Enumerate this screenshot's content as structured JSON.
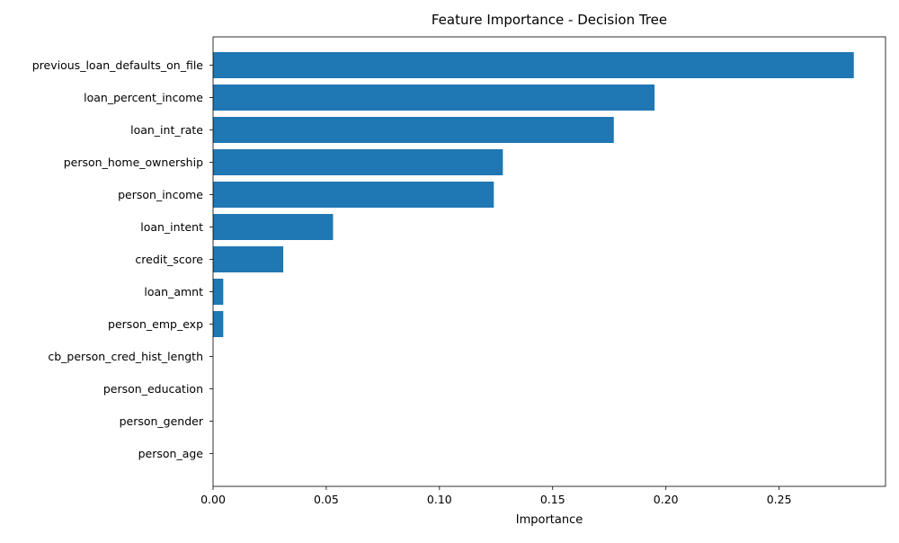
{
  "chart_data": {
    "type": "bar",
    "orientation": "horizontal",
    "title": "Feature Importance - Decision Tree",
    "xlabel": "Importance",
    "ylabel": "",
    "xlim": [
      0,
      0.297
    ],
    "xticks": [
      0.0,
      0.05,
      0.1,
      0.15,
      0.2,
      0.25
    ],
    "xtick_labels": [
      "0.00",
      "0.05",
      "0.10",
      "0.15",
      "0.20",
      "0.25"
    ],
    "grid": false,
    "legend": "none",
    "bar_color": "#1f77b4",
    "categories": [
      "previous_loan_defaults_on_file",
      "loan_percent_income",
      "loan_int_rate",
      "person_home_ownership",
      "person_income",
      "loan_intent",
      "credit_score",
      "loan_amnt",
      "person_emp_exp",
      "cb_person_cred_hist_length",
      "person_education",
      "person_gender",
      "person_age"
    ],
    "values": [
      0.283,
      0.195,
      0.177,
      0.128,
      0.124,
      0.053,
      0.031,
      0.0045,
      0.0045,
      0.0,
      0.0,
      0.0,
      0.0
    ]
  }
}
